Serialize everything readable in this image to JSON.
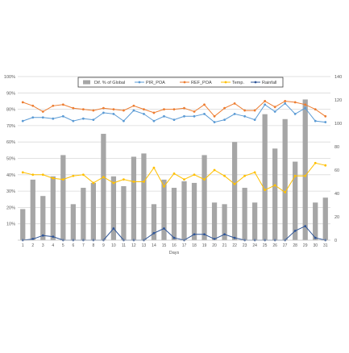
{
  "chart_data": {
    "type": "bar",
    "xlabel": "Days",
    "categories": [
      "1",
      "2",
      "3",
      "4",
      "5",
      "6",
      "7",
      "8",
      "9",
      "10",
      "11",
      "12",
      "13",
      "14",
      "15",
      "16",
      "17",
      "18",
      "19",
      "20",
      "21",
      "22",
      "23",
      "24",
      "25",
      "26",
      "27",
      "28",
      "29",
      "30",
      "31"
    ],
    "y_left": {
      "ylim": [
        0,
        100
      ],
      "ticks": [
        "10%",
        "20%",
        "30%",
        "40%",
        "50%",
        "60%",
        "70%",
        "80%",
        "90%",
        "100%"
      ]
    },
    "y_right": {
      "ylim": [
        0,
        140
      ],
      "ticks": [
        "0",
        "20",
        "40",
        "60",
        "80",
        "100",
        "120",
        "140"
      ]
    },
    "grid": true,
    "legend_position": "top",
    "bar_series": {
      "name": "Dif. % of Global",
      "axis": "left",
      "color": "#a6a6a6",
      "values": [
        19,
        37,
        27,
        39,
        52,
        22,
        32,
        35,
        65,
        39,
        33,
        51,
        53,
        22,
        37,
        32,
        36,
        35,
        52,
        23,
        22,
        60,
        32,
        23,
        77,
        56,
        74,
        48,
        86,
        23,
        26
      ]
    },
    "line_series": [
      {
        "name": "PIR_POA",
        "axis": "right",
        "color": "#5b9bd5",
        "values": [
          102,
          105,
          105,
          104,
          106,
          102,
          104,
          103,
          109,
          108,
          102,
          111,
          108,
          102,
          106,
          103,
          106,
          106,
          108,
          101,
          103,
          108,
          106,
          103,
          116,
          110,
          117,
          108,
          113,
          102,
          101
        ]
      },
      {
        "name": "REF_POA",
        "axis": "right",
        "color": "#ed7d31",
        "values": [
          118,
          115,
          110,
          115,
          116,
          113,
          112,
          111,
          113,
          112,
          111,
          115,
          112,
          109,
          112,
          112,
          113,
          110,
          116,
          106,
          113,
          117,
          111,
          111,
          119,
          114,
          119,
          118,
          116,
          112,
          106
        ]
      },
      {
        "name": "Temp.",
        "axis": "right",
        "color": "#ffc000",
        "values": [
          58,
          56,
          56,
          53,
          52,
          55,
          56,
          49,
          54,
          49,
          52,
          50,
          50,
          62,
          46,
          57,
          52,
          56,
          52,
          60,
          55,
          48,
          55,
          58,
          43,
          47,
          41,
          55,
          55,
          66,
          64
        ]
      },
      {
        "name": "Rainfall",
        "axis": "right",
        "color": "#2f5597",
        "values": [
          0,
          1,
          4,
          3,
          0,
          0,
          0,
          0,
          0,
          10,
          0,
          0,
          0,
          6,
          10,
          2,
          0,
          5,
          5,
          1,
          5,
          2,
          0,
          0,
          0,
          0,
          0,
          8,
          12,
          2,
          0
        ]
      }
    ]
  }
}
